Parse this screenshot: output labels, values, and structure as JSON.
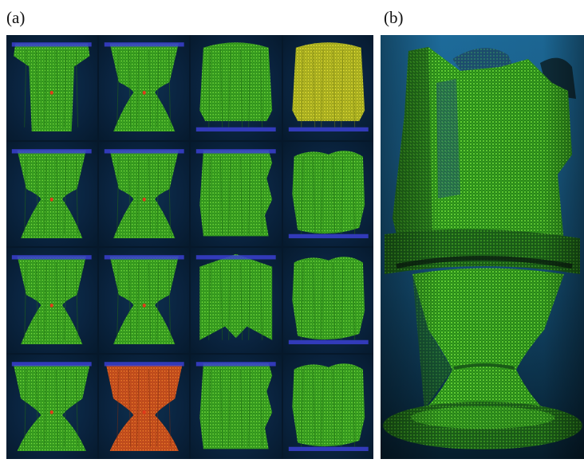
{
  "figure": {
    "panel_a_label": "(a)",
    "panel_b_label": "(b)"
  },
  "colors": {
    "point_green": "#4fcf2a",
    "point_green_dark": "#2f8f1c",
    "point_yellow": "#d7d82c",
    "point_orange": "#e0661e",
    "point_blue": "#3a3fd0",
    "background_navy": "#0a2440",
    "background_blue": "#1a5f8a"
  },
  "panel_a": {
    "rows": 4,
    "cols": 4,
    "tiles": [
      {
        "id": "r1c1",
        "shape": "vase-top",
        "palette": "green"
      },
      {
        "id": "r1c2",
        "shape": "hourglass",
        "palette": "green"
      },
      {
        "id": "r1c3",
        "shape": "disc-panel",
        "palette": "green"
      },
      {
        "id": "r1c4",
        "shape": "disc-panel",
        "palette": "yellow"
      },
      {
        "id": "r2c1",
        "shape": "hourglass",
        "palette": "green"
      },
      {
        "id": "r2c2",
        "shape": "hourglass",
        "palette": "green"
      },
      {
        "id": "r2c3",
        "shape": "striped-panel",
        "palette": "green"
      },
      {
        "id": "r2c4",
        "shape": "wavy-panel",
        "palette": "green"
      },
      {
        "id": "r3c1",
        "shape": "hourglass",
        "palette": "green"
      },
      {
        "id": "r3c2",
        "shape": "hourglass",
        "palette": "green"
      },
      {
        "id": "r3c3",
        "shape": "arrow-panel",
        "palette": "green"
      },
      {
        "id": "r3c4",
        "shape": "wavy-panel",
        "palette": "green"
      },
      {
        "id": "r4c1",
        "shape": "hourglass-wide",
        "palette": "green"
      },
      {
        "id": "r4c2",
        "shape": "hourglass-wide",
        "palette": "orange"
      },
      {
        "id": "r4c3",
        "shape": "striped-panel",
        "palette": "green"
      },
      {
        "id": "r4c4",
        "shape": "wavy-panel",
        "palette": "green"
      }
    ]
  },
  "panel_b": {
    "subject": "merged-point-cloud-model",
    "palette": "green"
  }
}
